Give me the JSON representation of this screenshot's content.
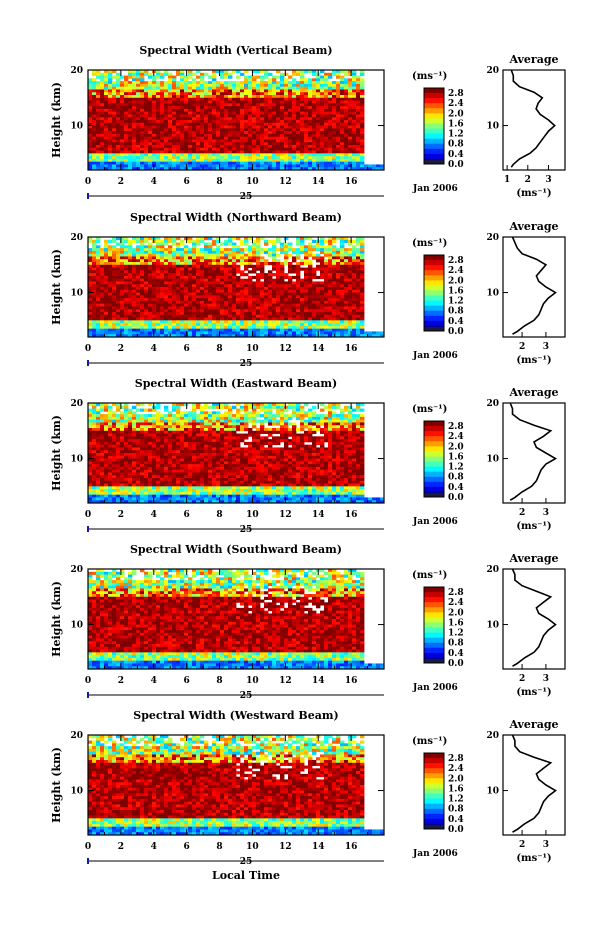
{
  "chart_data": [
    {
      "type": "heatmap",
      "title": "Spectral Width (Vertical Beam)",
      "ylabel": "Height (km)",
      "y_ticks": [
        "10",
        "20"
      ],
      "x_ticks": [
        "0",
        "2",
        "4",
        "6",
        "8",
        "10",
        "12",
        "14",
        "16"
      ],
      "xlim": [
        0,
        16
      ],
      "ylim": [
        2,
        20
      ],
      "date_marker": "25",
      "date_suffix": "Jan 2006",
      "colorbar": {
        "unit": "(ms⁻¹)",
        "ticks": [
          "2.8",
          "2.4",
          "2.0",
          "1.6",
          "1.2",
          "0.8",
          "0.4",
          "0.0"
        ],
        "range": [
          0.0,
          3.0
        ]
      },
      "average": {
        "title": "Average",
        "x_ticks": [
          "1",
          "2",
          "3"
        ],
        "xlim": [
          0.8,
          3.8
        ],
        "y_ticks": [
          "10",
          "20"
        ],
        "xlabel": "(ms⁻¹)",
        "height": [
          2.5,
          3,
          4,
          5,
          6,
          7,
          8,
          9,
          10,
          11,
          12,
          13,
          14,
          15,
          16,
          17,
          18,
          19,
          20
        ],
        "values": [
          1.2,
          1.3,
          1.6,
          2.1,
          2.4,
          2.6,
          2.8,
          3.0,
          3.3,
          3.0,
          2.6,
          2.4,
          2.5,
          2.7,
          2.3,
          1.6,
          1.3,
          1.3,
          1.2
        ]
      }
    },
    {
      "type": "heatmap",
      "title": "Spectral Width (Northward Beam)",
      "ylabel": "Height (km)",
      "y_ticks": [
        "10",
        "20"
      ],
      "x_ticks": [
        "0",
        "2",
        "4",
        "6",
        "8",
        "10",
        "12",
        "14",
        "16"
      ],
      "xlim": [
        0,
        16
      ],
      "ylim": [
        2,
        20
      ],
      "date_marker": "25",
      "date_suffix": "Jan 2006",
      "colorbar": {
        "unit": "(ms⁻¹)",
        "ticks": [
          "2.8",
          "2.4",
          "2.0",
          "1.6",
          "1.2",
          "0.8",
          "0.4",
          "0.0"
        ],
        "range": [
          0.0,
          3.0
        ]
      },
      "average": {
        "title": "Average",
        "x_ticks": [
          "2",
          "3"
        ],
        "xlim": [
          1.2,
          3.8
        ],
        "y_ticks": [
          "10",
          "20"
        ],
        "xlabel": "(ms⁻¹)",
        "height": [
          2.5,
          3,
          4,
          5,
          6,
          7,
          8,
          9,
          10,
          11,
          12,
          13,
          14,
          15,
          16,
          17,
          18,
          19,
          20
        ],
        "values": [
          1.6,
          1.8,
          2.1,
          2.5,
          2.7,
          2.8,
          2.9,
          3.1,
          3.4,
          3.0,
          2.7,
          2.6,
          2.8,
          3.0,
          2.6,
          2.0,
          1.8,
          1.7,
          1.6
        ]
      }
    },
    {
      "type": "heatmap",
      "title": "Spectral Width (Eastward Beam)",
      "ylabel": "Height (km)",
      "y_ticks": [
        "10",
        "20"
      ],
      "x_ticks": [
        "0",
        "2",
        "4",
        "6",
        "8",
        "10",
        "12",
        "14",
        "16"
      ],
      "xlim": [
        0,
        16
      ],
      "ylim": [
        2,
        20
      ],
      "date_marker": "25",
      "date_suffix": "Jan 2006",
      "colorbar": {
        "unit": "(ms⁻¹)",
        "ticks": [
          "2.8",
          "2.4",
          "2.0",
          "1.6",
          "1.2",
          "0.8",
          "0.4",
          "0.0"
        ],
        "range": [
          0.0,
          3.0
        ]
      },
      "average": {
        "title": "Average",
        "x_ticks": [
          "2",
          "3"
        ],
        "xlim": [
          1.2,
          3.8
        ],
        "y_ticks": [
          "10",
          "20"
        ],
        "xlabel": "(ms⁻¹)",
        "height": [
          2.5,
          3,
          4,
          5,
          6,
          7,
          8,
          9,
          10,
          11,
          12,
          13,
          14,
          15,
          16,
          17,
          18,
          19,
          20
        ],
        "values": [
          1.5,
          1.7,
          2.0,
          2.4,
          2.6,
          2.7,
          2.8,
          3.0,
          3.4,
          3.0,
          2.6,
          2.5,
          2.9,
          3.2,
          2.5,
          1.9,
          1.6,
          1.6,
          1.5
        ]
      }
    },
    {
      "type": "heatmap",
      "title": "Spectral Width (Southward Beam)",
      "ylabel": "Height (km)",
      "y_ticks": [
        "10",
        "20"
      ],
      "x_ticks": [
        "0",
        "2",
        "4",
        "6",
        "8",
        "10",
        "12",
        "14",
        "16"
      ],
      "xlim": [
        0,
        16
      ],
      "ylim": [
        2,
        20
      ],
      "date_marker": "25",
      "date_suffix": "Jan 2006",
      "colorbar": {
        "unit": "(ms⁻¹)",
        "ticks": [
          "2.8",
          "2.4",
          "2.0",
          "1.6",
          "1.2",
          "0.8",
          "0.4",
          "0.0"
        ],
        "range": [
          0.0,
          3.0
        ]
      },
      "average": {
        "title": "Average",
        "x_ticks": [
          "2",
          "3"
        ],
        "xlim": [
          1.2,
          3.8
        ],
        "y_ticks": [
          "10",
          "20"
        ],
        "xlabel": "(ms⁻¹)",
        "height": [
          2.5,
          3,
          4,
          5,
          6,
          7,
          8,
          9,
          10,
          11,
          12,
          13,
          14,
          15,
          16,
          17,
          18,
          19,
          20
        ],
        "values": [
          1.6,
          1.8,
          2.1,
          2.5,
          2.7,
          2.8,
          2.9,
          3.1,
          3.4,
          3.1,
          2.7,
          2.6,
          2.9,
          3.2,
          2.6,
          2.0,
          1.7,
          1.7,
          1.6
        ]
      }
    },
    {
      "type": "heatmap",
      "title": "Spectral Width (Westward Beam)",
      "ylabel": "Height (km)",
      "y_ticks": [
        "10",
        "20"
      ],
      "x_ticks": [
        "0",
        "2",
        "4",
        "6",
        "8",
        "10",
        "12",
        "14",
        "16"
      ],
      "xlim": [
        0,
        16
      ],
      "ylim": [
        2,
        20
      ],
      "date_marker": "25",
      "date_suffix": "Jan 2006",
      "xlabel": "Local Time",
      "colorbar": {
        "unit": "(ms⁻¹)",
        "ticks": [
          "2.8",
          "2.4",
          "2.0",
          "1.6",
          "1.2",
          "0.8",
          "0.4",
          "0.0"
        ],
        "range": [
          0.0,
          3.0
        ]
      },
      "average": {
        "title": "Average",
        "x_ticks": [
          "2",
          "3"
        ],
        "xlim": [
          1.2,
          3.8
        ],
        "y_ticks": [
          "10",
          "20"
        ],
        "xlabel": "(ms⁻¹)",
        "height": [
          2.5,
          3,
          4,
          5,
          6,
          7,
          8,
          9,
          10,
          11,
          12,
          13,
          14,
          15,
          16,
          17,
          18,
          19,
          20
        ],
        "values": [
          1.6,
          1.8,
          2.1,
          2.5,
          2.7,
          2.8,
          2.9,
          3.1,
          3.4,
          3.0,
          2.7,
          2.6,
          2.9,
          3.2,
          2.5,
          1.9,
          1.7,
          1.7,
          1.6
        ]
      }
    }
  ]
}
